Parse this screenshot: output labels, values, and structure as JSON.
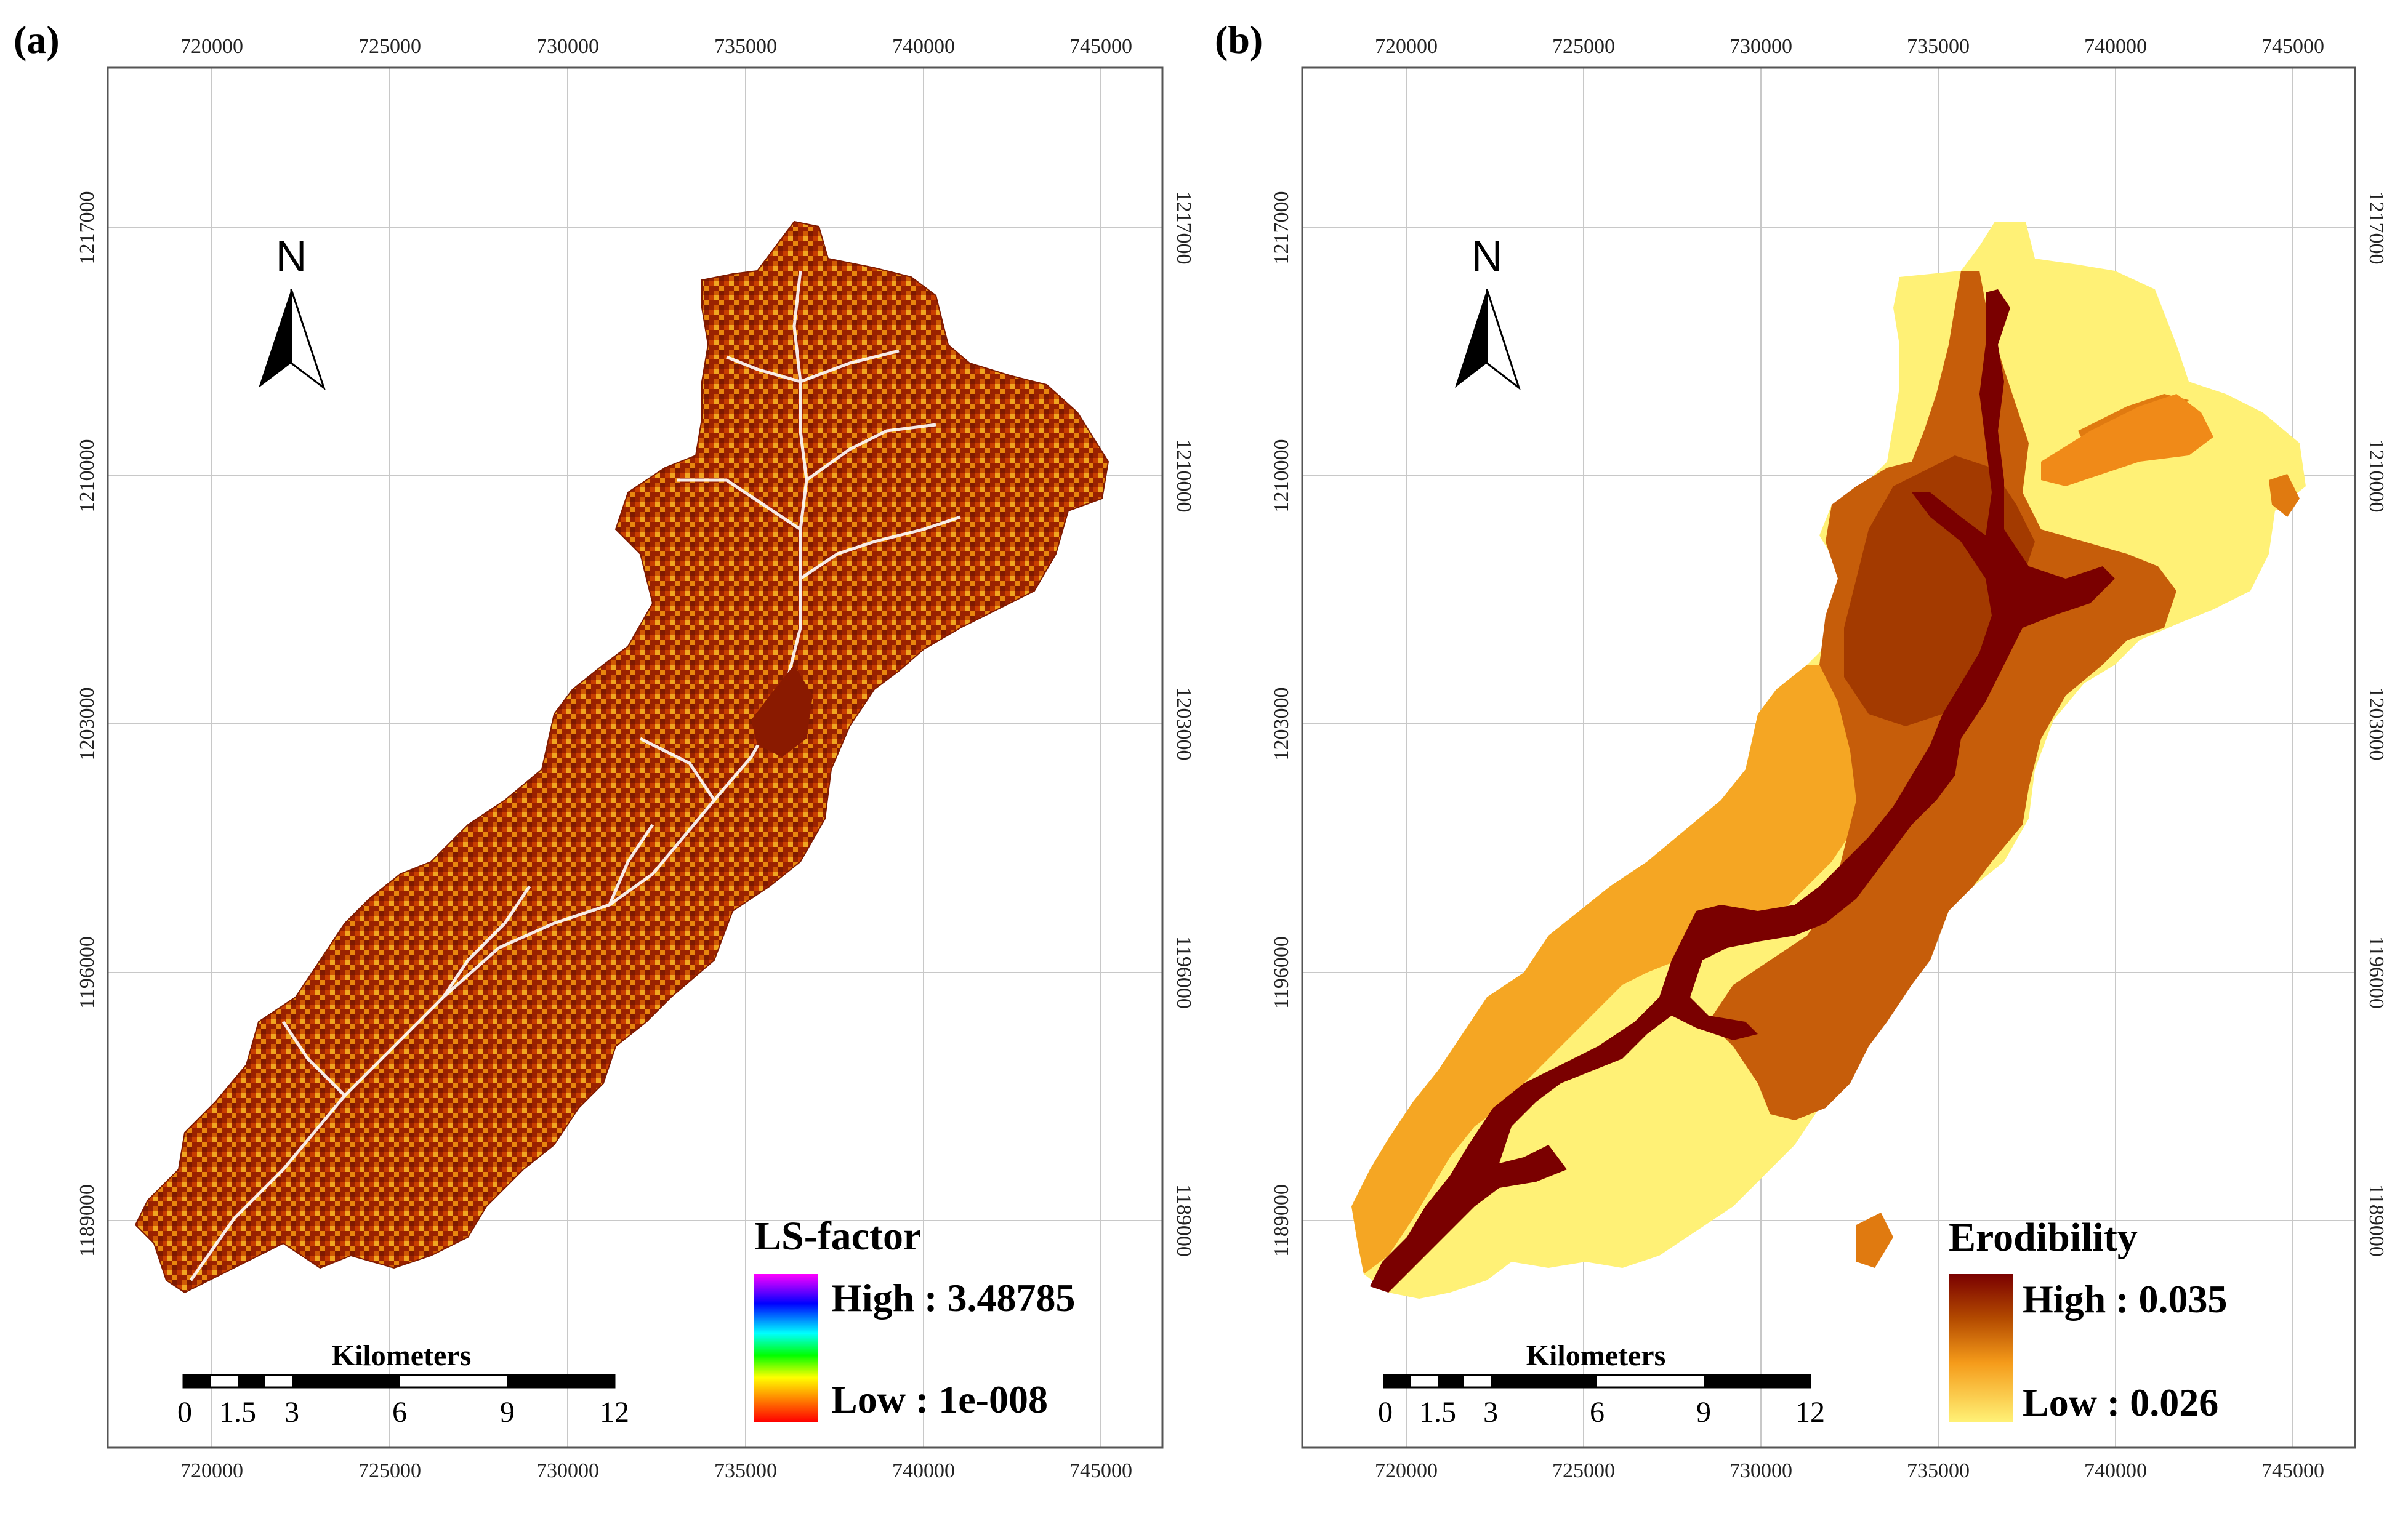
{
  "panels": [
    {
      "label": "(a)",
      "legend": {
        "title": "LS-factor",
        "high": "High : 3.48785",
        "low": "Low : 1e-008",
        "gradient": [
          "#ff00ff",
          "#0000ff",
          "#00ffff",
          "#00ff00",
          "#ffff00",
          "#ff8000",
          "#ff0000"
        ]
      },
      "north": "N",
      "scalebar": {
        "title": "Kilometers",
        "ticks": [
          "0",
          "1.5",
          "3",
          "6",
          "9",
          "12"
        ]
      },
      "x_ticks": [
        "720000",
        "725000",
        "730000",
        "735000",
        "740000",
        "745000"
      ],
      "y_ticks": [
        "1217000",
        "1210000",
        "1203000",
        "1196000",
        "1189000"
      ],
      "fill_colors": [
        "#8b1c00",
        "#c03a00",
        "#e87a10",
        "#f5a623"
      ]
    },
    {
      "label": "(b)",
      "legend": {
        "title": "Erodibility",
        "high": "High : 0.035",
        "low": "Low : 0.026",
        "gradient": [
          "#7a0000",
          "#b34a00",
          "#f59b1a",
          "#fff176"
        ]
      },
      "north": "N",
      "scalebar": {
        "title": "Kilometers",
        "ticks": [
          "0",
          "1.5",
          "3",
          "6",
          "9",
          "12"
        ]
      },
      "x_ticks": [
        "720000",
        "725000",
        "730000",
        "735000",
        "740000",
        "745000"
      ],
      "y_ticks": [
        "1217000",
        "1210000",
        "1203000",
        "1196000",
        "1189000"
      ],
      "fill_colors": [
        "#fff176",
        "#f5a623",
        "#c65d0a",
        "#a33a00",
        "#7a0000"
      ]
    }
  ]
}
